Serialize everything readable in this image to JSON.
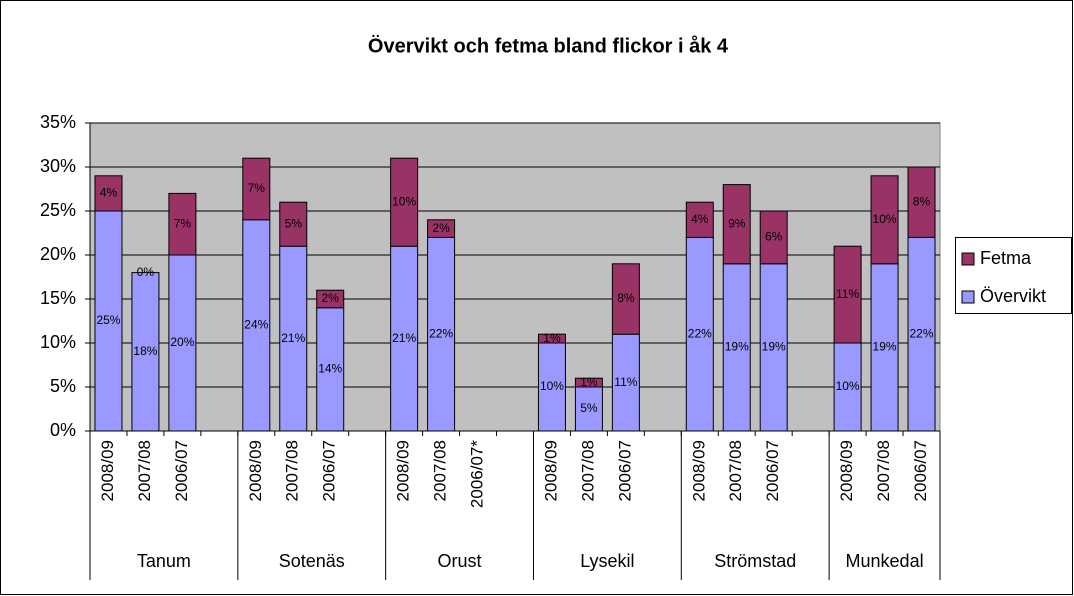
{
  "chart_data": {
    "type": "stacked_bar",
    "title": "Övervikt och fetma bland flickor i åk 4",
    "categories": [
      "2008/09",
      "2007/08",
      "2006/07",
      null,
      "2008/09",
      "2007/08",
      "2006/07",
      null,
      "2008/09",
      "2007/08",
      "2006/07*",
      null,
      "2008/09",
      "2007/08",
      "2006/07",
      null,
      "2008/09",
      "2007/08",
      "2006/07",
      null,
      "2008/09",
      "2007/08",
      "2006/07"
    ],
    "groups": [
      "Tanum",
      "Sotenäs",
      "Orust",
      "Lysekil",
      "Strömstad",
      "Munkedal"
    ],
    "series": [
      {
        "name": "Övervikt",
        "color": "#9999ff",
        "values": [
          25,
          18,
          20,
          null,
          24,
          21,
          14,
          null,
          21,
          22,
          null,
          null,
          10,
          5,
          11,
          null,
          22,
          19,
          19,
          null,
          10,
          19,
          22
        ],
        "value_labels": [
          "25%",
          "18%",
          "20%",
          null,
          "24%",
          "21%",
          "14%",
          null,
          "21%",
          "22%",
          null,
          null,
          "10%",
          "5%",
          "11%",
          null,
          "22%",
          "19%",
          "19%",
          null,
          "10%",
          "19%",
          "22%"
        ]
      },
      {
        "name": "Fetma",
        "color": "#993366",
        "values": [
          4,
          0,
          7,
          null,
          7,
          5,
          2,
          null,
          10,
          2,
          null,
          null,
          1,
          1,
          8,
          null,
          4,
          9,
          6,
          null,
          11,
          10,
          8
        ],
        "value_labels": [
          "4%",
          "0%",
          "7%",
          null,
          "7%",
          "5%",
          "2%",
          null,
          "10%",
          "2%",
          null,
          null,
          "1%",
          "1%",
          "8%",
          null,
          "4%",
          "9%",
          "6%",
          null,
          "11%",
          "10%",
          "8%"
        ]
      }
    ],
    "ylim": [
      0,
      35
    ],
    "yticks": [
      {
        "value": 0,
        "label": "0%"
      },
      {
        "value": 5,
        "label": "5%"
      },
      {
        "value": 10,
        "label": "10%"
      },
      {
        "value": 15,
        "label": "15%"
      },
      {
        "value": 20,
        "label": "20%"
      },
      {
        "value": 25,
        "label": "25%"
      },
      {
        "value": 30,
        "label": "30%"
      },
      {
        "value": 35,
        "label": "35%"
      }
    ],
    "grid": true,
    "legend": "right",
    "background": "#c0c0c0"
  }
}
